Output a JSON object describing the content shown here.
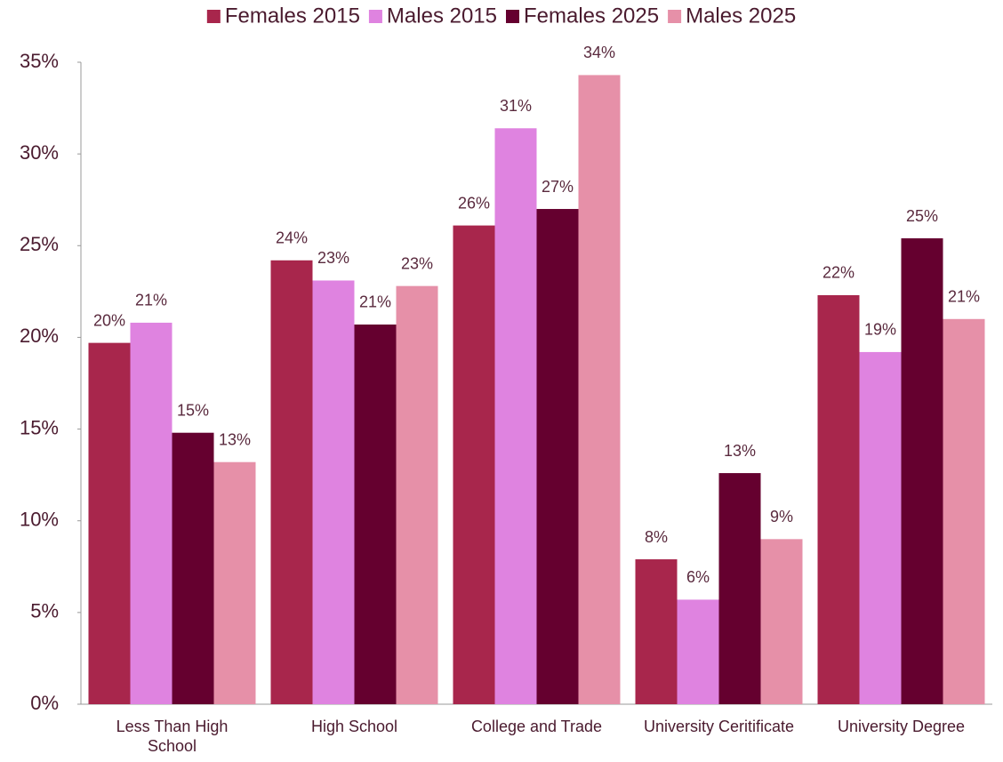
{
  "chart_data": {
    "type": "bar",
    "categories": [
      "Less Than High School",
      "High School",
      "College and Trade",
      "University Ceritificate",
      "University Degree"
    ],
    "series": [
      {
        "name": "Females 2015",
        "color": "#a8264c",
        "values": [
          19.7,
          24.2,
          26.1,
          7.9,
          22.3
        ],
        "value_labels": [
          "20%",
          "24%",
          "26%",
          "8%",
          "22%"
        ]
      },
      {
        "name": "Males 2015",
        "color": "#df83e0",
        "values": [
          20.8,
          23.1,
          31.4,
          5.7,
          19.2
        ],
        "value_labels": [
          "21%",
          "23%",
          "31%",
          "6%",
          "19%"
        ]
      },
      {
        "name": "Females 2025",
        "color": "#65002f",
        "values": [
          14.8,
          20.7,
          27.0,
          12.6,
          25.4
        ],
        "value_labels": [
          "15%",
          "21%",
          "27%",
          "13%",
          "25%"
        ]
      },
      {
        "name": "Males 2025",
        "color": "#e690a8",
        "values": [
          13.2,
          22.8,
          34.3,
          9.0,
          21.0
        ],
        "value_labels": [
          "13%",
          "23%",
          "34%",
          "9%",
          "21%"
        ]
      }
    ],
    "ylim": [
      0,
      35
    ],
    "yticks": [
      {
        "value": 0,
        "label": "0%"
      },
      {
        "value": 5,
        "label": "5%"
      },
      {
        "value": 10,
        "label": "10%"
      },
      {
        "value": 15,
        "label": "15%"
      },
      {
        "value": 20,
        "label": "20%"
      },
      {
        "value": 25,
        "label": "25%"
      },
      {
        "value": 30,
        "label": "30%"
      },
      {
        "value": 35,
        "label": "35%"
      }
    ],
    "legend": "top"
  }
}
